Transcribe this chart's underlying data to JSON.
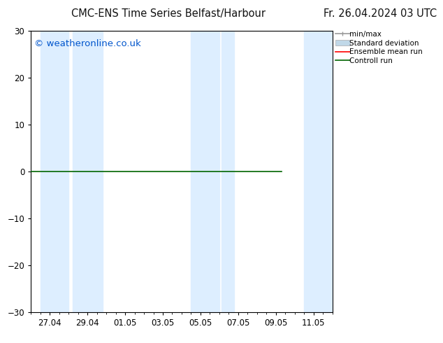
{
  "title_left": "CMC-ENS Time Series Belfast/Harbour",
  "title_right": "Fr. 26.04.2024 03 UTC",
  "watermark": "© weatheronline.co.uk",
  "watermark_color": "#0055cc",
  "ylim": [
    -30,
    30
  ],
  "yticks": [
    -30,
    -20,
    -10,
    0,
    10,
    20,
    30
  ],
  "bg_color": "#ffffff",
  "plot_bg_color": "#ffffff",
  "shading_color": "#ddeeff",
  "xtick_labels": [
    "27.04",
    "29.04",
    "01.05",
    "03.05",
    "05.05",
    "07.05",
    "09.05",
    "11.05"
  ],
  "xtick_positions": [
    1,
    3,
    5,
    7,
    9,
    11,
    13,
    15
  ],
  "xlim": [
    0,
    16
  ],
  "shaded_regions": [
    [
      0.5,
      2.0
    ],
    [
      2.2,
      3.8
    ],
    [
      8.5,
      10.0
    ],
    [
      10.1,
      10.8
    ],
    [
      14.5,
      16.0
    ]
  ],
  "line_color": "#006400",
  "line_x_start": 0.0,
  "line_x_end": 13.3,
  "ensemble_color": "#ff0000",
  "control_color": "#006400",
  "minmax_color": "#999999",
  "stddev_color": "#c0d8e8",
  "legend_labels": [
    "min/max",
    "Standard deviation",
    "Ensemble mean run",
    "Controll run"
  ],
  "title_fontsize": 10.5,
  "axis_fontsize": 8.5,
  "watermark_fontsize": 9.5
}
